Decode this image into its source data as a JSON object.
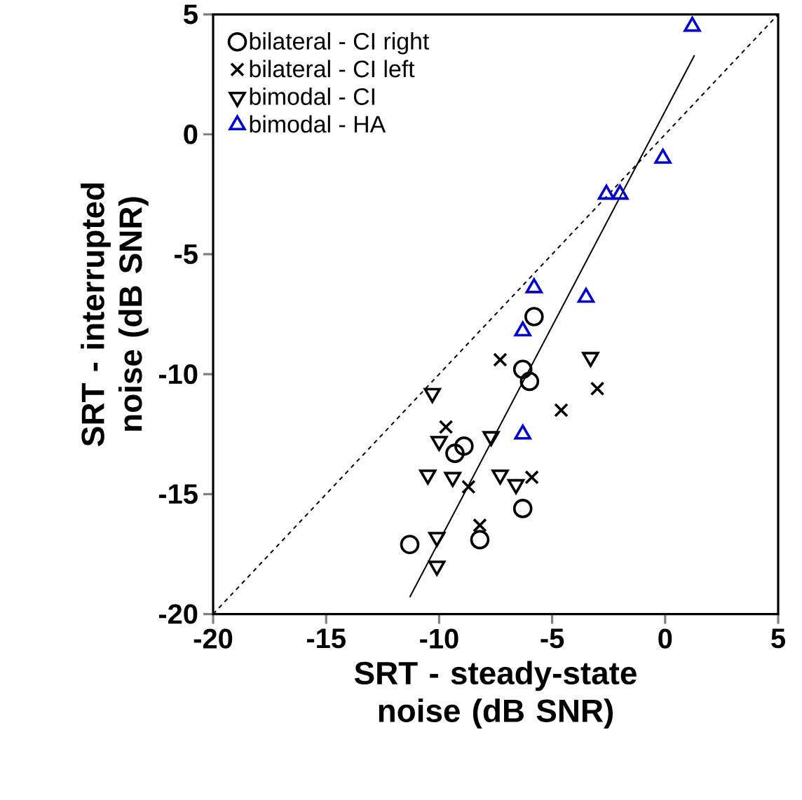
{
  "chart_data": {
    "type": "scatter",
    "xlabel": "SRT - steady-state noise (dB SNR)",
    "ylabel": "SRT - interrupted noise (dB SNR)",
    "xlim": [
      -20,
      5
    ],
    "ylim": [
      -20,
      5
    ],
    "xticks": [
      -20,
      -15,
      -10,
      -5,
      0,
      5
    ],
    "yticks": [
      -20,
      -15,
      -10,
      -5,
      0,
      5
    ],
    "legend": "top left",
    "series": [
      {
        "name": "bilateral - CI right",
        "color": "#000000",
        "marker": "circle",
        "x": [
          -11.3,
          -8.2,
          -6.3,
          -9.3,
          -8.9,
          -6.3,
          -6.0,
          -5.8
        ],
        "values": [
          -17.1,
          -16.9,
          -15.6,
          -13.3,
          -13.0,
          -9.8,
          -10.3,
          -7.6
        ]
      },
      {
        "name": "bilateral - CI left",
        "color": "#000000",
        "marker": "cross",
        "x": [
          -7.3,
          -3.0,
          -4.6,
          -9.7,
          -8.7,
          -5.9,
          -8.2
        ],
        "values": [
          -9.4,
          -10.6,
          -11.5,
          -12.2,
          -14.7,
          -14.3,
          -16.3
        ]
      },
      {
        "name": "bimodal - CI",
        "color": "#000000",
        "marker": "triangle-down",
        "x": [
          -10.3,
          -3.3,
          -10.0,
          -7.7,
          -10.5,
          -9.4,
          -7.3,
          -6.6,
          -10.1,
          -10.1
        ],
        "values": [
          -10.8,
          -9.3,
          -12.8,
          -12.6,
          -14.2,
          -14.3,
          -14.2,
          -14.6,
          -16.8,
          -18.0
        ]
      },
      {
        "name": "bimodal - HA",
        "color": "#0000cc",
        "marker": "triangle",
        "x": [
          1.2,
          -0.1,
          -2.6,
          -2.0,
          -5.8,
          -3.5,
          -6.3,
          -6.3
        ],
        "values": [
          4.5,
          -1.0,
          -2.5,
          -2.5,
          -6.4,
          -6.8,
          -8.2,
          -12.5
        ]
      },
      {
        "type": "line",
        "color": "#000000",
        "marker": "none",
        "line_style": "dashed",
        "x": [
          -20,
          5
        ],
        "values": [
          -20,
          5
        ]
      },
      {
        "type": "line",
        "color": "#000000",
        "marker": "none",
        "line_style": "solid",
        "x": [
          -11.3,
          1.3
        ],
        "values": [
          -19.3,
          3.3
        ]
      }
    ]
  }
}
